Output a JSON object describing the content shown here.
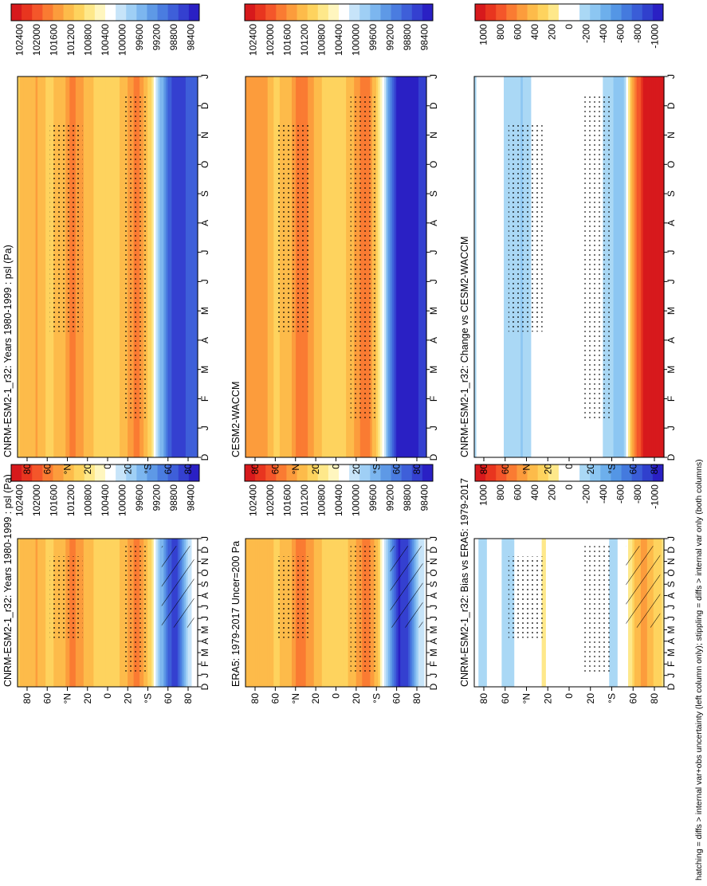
{
  "figure": {
    "footnote": "hatching = diffs > internal var+obs uncertainty (left column only); stippling = diffs > internal var only (both columns)"
  },
  "colors": {
    "abs_scale": [
      "#d7191c",
      "#e8351f",
      "#f4562a",
      "#fa7b32",
      "#fc9c3c",
      "#fdbb4a",
      "#fed35e",
      "#fee88a",
      "#fff6bf",
      "#ffffff",
      "#c7e4f9",
      "#9fcff5",
      "#7cb6ef",
      "#5e99e6",
      "#4a7ce0",
      "#3e5fd9",
      "#3440d0",
      "#2a20c4"
    ],
    "diff_scale": [
      "#d7191c",
      "#e8351f",
      "#f4562a",
      "#fa7b32",
      "#fc9c3c",
      "#fdbb4a",
      "#fed35e",
      "#fee88a",
      "#ffffff",
      "#ffffff",
      "#aad8f5",
      "#8cc6f2",
      "#6dafec",
      "#5496e5",
      "#447ade",
      "#3a5dd7",
      "#3040cd",
      "#2a20c4"
    ]
  },
  "chart_data": [
    {
      "panel": "cnrm-climatology",
      "type": "heatmap",
      "title": "CNRM-ESM2-1_r32: Years 1980-1999 : psl (Pa)",
      "x": [
        "D",
        "J",
        "F",
        "M",
        "A",
        "M",
        "J",
        "J",
        "A",
        "S",
        "O",
        "N",
        "D",
        "J"
      ],
      "y": [
        "80",
        "60",
        "°N",
        "20",
        "0",
        "20",
        "°S",
        "60",
        "80"
      ],
      "colorbar": {
        "scale": "abs",
        "ticks": [
          "102400",
          "102000",
          "101600",
          "101200",
          "100800",
          "100400",
          "100000",
          "99600",
          "99200",
          "98800",
          "98400"
        ],
        "range": [
          98400,
          102600
        ]
      },
      "z_by_lat": [
        {
          "lat": 90,
          "value": 101150
        },
        {
          "lat": 80,
          "value": 101350
        },
        {
          "lat": 70,
          "value": 101450
        },
        {
          "lat": 60,
          "value": 101150
        },
        {
          "lat": 45,
          "value": 101300
        },
        {
          "lat": 35,
          "value": 101800
        },
        {
          "lat": 25,
          "value": 101450
        },
        {
          "lat": 10,
          "value": 101100
        },
        {
          "lat": 0,
          "value": 101050
        },
        {
          "lat": -15,
          "value": 101250
        },
        {
          "lat": -30,
          "value": 101800
        },
        {
          "lat": -42,
          "value": 101100
        },
        {
          "lat": -52,
          "value": 99900
        },
        {
          "lat": -62,
          "value": 98900
        },
        {
          "lat": -70,
          "value": 98800
        },
        {
          "lat": -80,
          "value": 100100
        },
        {
          "lat": -90,
          "value": 100500
        }
      ],
      "hatching": true
    },
    {
      "panel": "cnrm-climatology-right",
      "type": "heatmap",
      "title": "CNRM-ESM2-1_r32: Years 1980-1999 : psl (Pa)",
      "x": [
        "D",
        "J",
        "F",
        "M",
        "A",
        "M",
        "J",
        "J",
        "A",
        "S",
        "O",
        "N",
        "D",
        "J"
      ],
      "y": [
        "80",
        "60",
        "°N",
        "20",
        "0",
        "20",
        "°S",
        "60",
        "80"
      ],
      "colorbar": {
        "scale": "abs",
        "ticks": [
          "102400",
          "102000",
          "101600",
          "101200",
          "100800",
          "100400",
          "100000",
          "99600",
          "99200",
          "98800",
          "98400"
        ],
        "range": [
          98400,
          102600
        ]
      },
      "z_by_lat": [
        {
          "lat": 90,
          "value": 101150
        },
        {
          "lat": 80,
          "value": 101350
        },
        {
          "lat": 70,
          "value": 101450
        },
        {
          "lat": 60,
          "value": 101150
        },
        {
          "lat": 45,
          "value": 101300
        },
        {
          "lat": 35,
          "value": 101800
        },
        {
          "lat": 25,
          "value": 101450
        },
        {
          "lat": 10,
          "value": 101100
        },
        {
          "lat": 0,
          "value": 101050
        },
        {
          "lat": -15,
          "value": 101250
        },
        {
          "lat": -30,
          "value": 101800
        },
        {
          "lat": -42,
          "value": 101100
        },
        {
          "lat": -52,
          "value": 99900
        },
        {
          "lat": -62,
          "value": 98900
        },
        {
          "lat": -70,
          "value": 98700
        },
        {
          "lat": -80,
          "value": 98900
        },
        {
          "lat": -90,
          "value": 99100
        }
      ],
      "hatching": false
    },
    {
      "panel": "era5-reference",
      "type": "heatmap",
      "title": "ERA5: 1979-2017 Uncer=200 Pa",
      "x": [
        "D",
        "J",
        "F",
        "M",
        "A",
        "M",
        "J",
        "J",
        "A",
        "S",
        "O",
        "N",
        "D",
        "J"
      ],
      "y": [
        "80",
        "60",
        "°N",
        "20",
        "0",
        "20",
        "°S",
        "60",
        "80"
      ],
      "colorbar": {
        "scale": "abs",
        "ticks": [
          "102400",
          "102000",
          "101600",
          "101200",
          "100800",
          "100400",
          "100000",
          "99600",
          "99200",
          "98800",
          "98400"
        ],
        "range": [
          98400,
          102600
        ]
      },
      "z_by_lat": [
        {
          "lat": 90,
          "value": 101250
        },
        {
          "lat": 80,
          "value": 101400
        },
        {
          "lat": 70,
          "value": 101350
        },
        {
          "lat": 60,
          "value": 101150
        },
        {
          "lat": 45,
          "value": 101400
        },
        {
          "lat": 35,
          "value": 101850
        },
        {
          "lat": 25,
          "value": 101500
        },
        {
          "lat": 10,
          "value": 101100
        },
        {
          "lat": 0,
          "value": 101050
        },
        {
          "lat": -15,
          "value": 101250
        },
        {
          "lat": -30,
          "value": 101850
        },
        {
          "lat": -42,
          "value": 101150
        },
        {
          "lat": -52,
          "value": 99700
        },
        {
          "lat": -62,
          "value": 98600
        },
        {
          "lat": -70,
          "value": 98700
        },
        {
          "lat": -80,
          "value": 99900
        },
        {
          "lat": -90,
          "value": 100400
        }
      ],
      "hatching": true
    },
    {
      "panel": "cesm2-waccm",
      "type": "heatmap",
      "title": "CESM2-WACCM",
      "x": [
        "D",
        "J",
        "F",
        "M",
        "A",
        "M",
        "J",
        "J",
        "A",
        "S",
        "O",
        "N",
        "D",
        "J"
      ],
      "y": [
        "80",
        "60",
        "°N",
        "20",
        "0",
        "20",
        "°S",
        "60",
        "80"
      ],
      "colorbar": {
        "scale": "abs",
        "ticks": [
          "102400",
          "102000",
          "101600",
          "101200",
          "100800",
          "100400",
          "100000",
          "99600",
          "99200",
          "98800",
          "98400"
        ],
        "range": [
          98400,
          102600
        ]
      },
      "z_by_lat": [
        {
          "lat": 90,
          "value": 101500
        },
        {
          "lat": 80,
          "value": 101650
        },
        {
          "lat": 70,
          "value": 101500
        },
        {
          "lat": 60,
          "value": 101150
        },
        {
          "lat": 45,
          "value": 101350
        },
        {
          "lat": 35,
          "value": 101900
        },
        {
          "lat": 25,
          "value": 101550
        },
        {
          "lat": 10,
          "value": 101100
        },
        {
          "lat": 0,
          "value": 101050
        },
        {
          "lat": -15,
          "value": 101300
        },
        {
          "lat": -30,
          "value": 101900
        },
        {
          "lat": -42,
          "value": 101100
        },
        {
          "lat": -52,
          "value": 99600
        },
        {
          "lat": -62,
          "value": 98500
        },
        {
          "lat": -70,
          "value": 98450
        },
        {
          "lat": -80,
          "value": 98600
        },
        {
          "lat": -90,
          "value": 98800
        }
      ],
      "hatching": false
    },
    {
      "panel": "bias-vs-era5",
      "type": "heatmap",
      "title": "CNRM-ESM2-1_r32: Bias vs ERA5: 1979-2017",
      "x": [
        "D",
        "J",
        "F",
        "M",
        "A",
        "M",
        "J",
        "J",
        "A",
        "S",
        "O",
        "N",
        "D",
        "J"
      ],
      "y": [
        "80",
        "60",
        "°N",
        "20",
        "0",
        "20",
        "°S",
        "60",
        "80"
      ],
      "colorbar": {
        "scale": "diff",
        "ticks": [
          "1000",
          "800",
          "600",
          "400",
          "200",
          "0",
          "-200",
          "-400",
          "-600",
          "-800",
          "-1000"
        ],
        "range": [
          -1100,
          1100
        ]
      },
      "z_by_lat": [
        {
          "lat": 90,
          "value": -100
        },
        {
          "lat": 80,
          "value": -150
        },
        {
          "lat": 70,
          "value": 50
        },
        {
          "lat": 60,
          "value": -200
        },
        {
          "lat": 45,
          "value": -60
        },
        {
          "lat": 35,
          "value": -20
        },
        {
          "lat": 25,
          "value": 150
        },
        {
          "lat": 10,
          "value": 0
        },
        {
          "lat": 0,
          "value": 0
        },
        {
          "lat": -15,
          "value": 0
        },
        {
          "lat": -30,
          "value": -60
        },
        {
          "lat": -42,
          "value": -150
        },
        {
          "lat": -52,
          "value": -60
        },
        {
          "lat": -62,
          "value": 350
        },
        {
          "lat": -70,
          "value": 550
        },
        {
          "lat": -80,
          "value": 350
        },
        {
          "lat": -90,
          "value": 200
        }
      ],
      "hatching": true
    },
    {
      "panel": "change-vs-cesm2",
      "type": "heatmap",
      "title": "CNRM-ESM2-1_r32: Change vs CESM2-WACCM",
      "x": [
        "D",
        "J",
        "F",
        "M",
        "A",
        "M",
        "J",
        "J",
        "A",
        "S",
        "O",
        "N",
        "D",
        "J"
      ],
      "y": [
        "80",
        "60",
        "°N",
        "20",
        "0",
        "20",
        "°S",
        "60",
        "80"
      ],
      "colorbar": {
        "scale": "diff",
        "ticks": [
          "1000",
          "800",
          "600",
          "400",
          "200",
          "0",
          "-200",
          "-400",
          "-600",
          "-800",
          "-1000"
        ],
        "range": [
          -1100,
          1100
        ]
      },
      "z_by_lat": [
        {
          "lat": 90,
          "value": -150
        },
        {
          "lat": 80,
          "value": -50
        },
        {
          "lat": 70,
          "value": 100
        },
        {
          "lat": 60,
          "value": -150
        },
        {
          "lat": 45,
          "value": -250
        },
        {
          "lat": 35,
          "value": -100
        },
        {
          "lat": 25,
          "value": -50
        },
        {
          "lat": 10,
          "value": 0
        },
        {
          "lat": 0,
          "value": 0
        },
        {
          "lat": -15,
          "value": 0
        },
        {
          "lat": -30,
          "value": -100
        },
        {
          "lat": -42,
          "value": -250
        },
        {
          "lat": -52,
          "value": -350
        },
        {
          "lat": -60,
          "value": 500
        },
        {
          "lat": -70,
          "value": 1000
        },
        {
          "lat": -80,
          "value": 1100
        },
        {
          "lat": -90,
          "value": 1100
        }
      ],
      "hatching": false
    }
  ]
}
